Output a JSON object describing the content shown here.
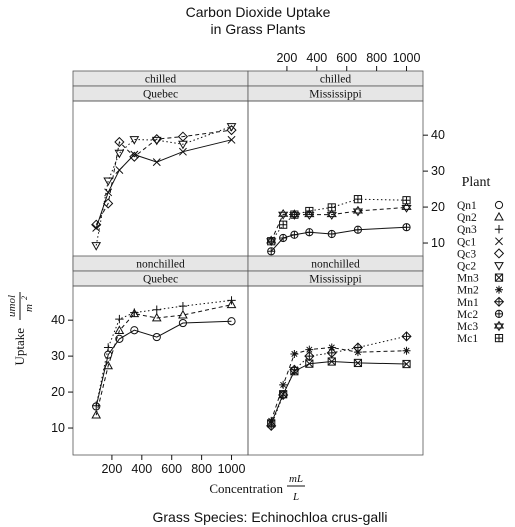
{
  "chart_data": {
    "type": "line",
    "title": "Carbon Dioxide Uptake",
    "subtitle": "in Grass Plants",
    "xlabel": "Concentration",
    "xlabel_unit_num": "mL",
    "xlabel_unit_den": "L",
    "ylabel": "Uptake",
    "ylabel_unit_num": "umol",
    "ylabel_unit_den": "m",
    "ylabel_unit_den_sup": "2",
    "caption": "Grass Species:  Echinochloa crus-galli",
    "legend_title": "Plant",
    "xlim": [
      0,
      1050
    ],
    "ylim": [
      5,
      47
    ],
    "x_ticks": [
      200,
      400,
      600,
      800,
      1000
    ],
    "y_ticks": [
      10,
      20,
      30,
      40
    ],
    "x": [
      95,
      175,
      250,
      350,
      500,
      675,
      1000
    ],
    "legend_position": "right",
    "panels": [
      {
        "strips": [
          "chilled",
          "Quebec"
        ],
        "series": [
          {
            "name": "Qc1",
            "values": [
              14.2,
              24.1,
              30.3,
              34.6,
              32.5,
              35.4,
              38.7
            ]
          },
          {
            "name": "Qc3",
            "values": [
              15.1,
              21.0,
              38.1,
              34.0,
              38.9,
              39.6,
              41.4
            ]
          },
          {
            "name": "Qc2",
            "values": [
              9.3,
              27.3,
              35.0,
              38.8,
              38.6,
              37.5,
              42.4
            ]
          }
        ]
      },
      {
        "strips": [
          "chilled",
          "Mississippi"
        ],
        "series": [
          {
            "name": "Mc2",
            "values": [
              7.7,
              11.4,
              12.3,
              13.0,
              12.5,
              13.7,
              14.4
            ]
          },
          {
            "name": "Mc3",
            "values": [
              10.6,
              18.0,
              17.9,
              17.9,
              17.9,
              18.9,
              19.9
            ]
          },
          {
            "name": "Mc1",
            "values": [
              10.5,
              15.1,
              17.9,
              18.9,
              19.9,
              22.2,
              21.9
            ]
          }
        ]
      },
      {
        "strips": [
          "nonchilled",
          "Quebec"
        ],
        "series": [
          {
            "name": "Qn1",
            "values": [
              16.0,
              30.4,
              34.8,
              37.2,
              35.3,
              39.2,
              39.7
            ]
          },
          {
            "name": "Qn2",
            "values": [
              13.6,
              27.3,
              37.1,
              41.8,
              40.6,
              41.4,
              44.3
            ]
          },
          {
            "name": "Qn3",
            "values": [
              16.2,
              32.4,
              40.3,
              42.1,
              42.9,
              43.9,
              45.5
            ]
          }
        ]
      },
      {
        "strips": [
          "nonchilled",
          "Mississippi"
        ],
        "series": [
          {
            "name": "Mn3",
            "values": [
              11.3,
              19.4,
              25.8,
              27.9,
              28.5,
              28.1,
              27.8
            ]
          },
          {
            "name": "Mn2",
            "values": [
              12.0,
              22.0,
              30.6,
              31.8,
              32.4,
              31.1,
              31.5
            ]
          },
          {
            "name": "Mn1",
            "values": [
              10.6,
              19.2,
              26.2,
              30.0,
              30.9,
              32.4,
              35.5
            ]
          }
        ]
      }
    ],
    "legend": [
      {
        "name": "Qn1",
        "symbol": "circle-icon"
      },
      {
        "name": "Qn2",
        "symbol": "triangle-up-icon"
      },
      {
        "name": "Qn3",
        "symbol": "plus-icon"
      },
      {
        "name": "Qc1",
        "symbol": "cross-icon"
      },
      {
        "name": "Qc3",
        "symbol": "diamond-icon"
      },
      {
        "name": "Qc2",
        "symbol": "triangle-down-icon"
      },
      {
        "name": "Mn3",
        "symbol": "boxed-x-icon"
      },
      {
        "name": "Mn2",
        "symbol": "asterisk-icon"
      },
      {
        "name": "Mn1",
        "symbol": "diamond-plus-icon"
      },
      {
        "name": "Mc2",
        "symbol": "circle-plus-icon"
      },
      {
        "name": "Mc3",
        "symbol": "star-of-david-icon"
      },
      {
        "name": "Mc1",
        "symbol": "boxed-plus-icon"
      }
    ],
    "line_styles": [
      "solid",
      "dashed",
      "dotted"
    ],
    "colors": {
      "ink": "#111111",
      "strip_fill": "#e6e6e6",
      "panel_border": "#555555"
    }
  }
}
